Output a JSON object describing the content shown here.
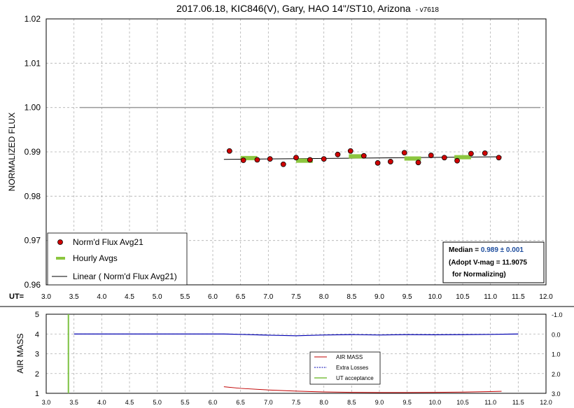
{
  "chart_data": [
    {
      "type": "scatter",
      "title": "2017.06.18, KIC846(V), Gary, HAO 14\"/ST10, Arizona",
      "title_suffix": "- v7618",
      "ylabel": "NORMALIZED FLUX",
      "xlabel": "UT=",
      "xlim": [
        3.0,
        12.0
      ],
      "ylim": [
        0.96,
        1.02
      ],
      "x_ticks": [
        "3.0",
        "3.5",
        "4.0",
        "4.5",
        "5.0",
        "5.5",
        "6.0",
        "6.5",
        "7.0",
        "7.5",
        "8.0",
        "8.5",
        "9.0",
        "9.5",
        "10.0",
        "10.5",
        "11.0",
        "11.5",
        "12.0"
      ],
      "y_ticks": [
        "0.96",
        "0.97",
        "0.98",
        "0.99",
        "1.00",
        "1.01",
        "1.02"
      ],
      "grid": true,
      "reference_line": {
        "y": 1.0,
        "x": [
          3.6,
          11.9
        ],
        "color": "#999999"
      },
      "series": [
        {
          "name": "Norm'd Flux Avg21",
          "kind": "points",
          "color": "#d00000",
          "x": [
            6.3,
            6.55,
            6.8,
            7.03,
            7.27,
            7.5,
            7.75,
            8.0,
            8.25,
            8.48,
            8.72,
            8.97,
            9.2,
            9.45,
            9.7,
            9.93,
            10.17,
            10.4,
            10.65,
            10.9,
            11.15
          ],
          "y": [
            0.9902,
            0.9881,
            0.9882,
            0.9884,
            0.9872,
            0.9887,
            0.9882,
            0.9884,
            0.9894,
            0.9902,
            0.9891,
            0.9875,
            0.9878,
            0.9898,
            0.9876,
            0.9892,
            0.9887,
            0.988,
            0.9896,
            0.9897,
            0.9887
          ]
        },
        {
          "name": "Hourly Avgs",
          "kind": "segments",
          "color": "#8cc63f",
          "points": [
            {
              "x0": 6.5,
              "x1": 6.8,
              "y": 0.9886
            },
            {
              "x0": 7.5,
              "x1": 7.8,
              "y": 0.988
            },
            {
              "x0": 8.45,
              "x1": 8.75,
              "y": 0.989
            },
            {
              "x0": 9.45,
              "x1": 9.75,
              "y": 0.9885
            },
            {
              "x0": 10.35,
              "x1": 10.65,
              "y": 0.9888
            }
          ]
        },
        {
          "name": "Linear ( Norm'd Flux Avg21)",
          "kind": "line",
          "color": "#000000",
          "x": [
            6.2,
            11.2
          ],
          "y": [
            0.9883,
            0.9889
          ]
        }
      ],
      "legend": {
        "placement": "bottom-left"
      },
      "annotation": {
        "line1_label": "Median = ",
        "line1_value": "0.989 ± 0.001",
        "line2": "(Adopt V-mag = 11.9075",
        "line3": "for Normalizing)"
      }
    },
    {
      "type": "line",
      "ylabel": "AIR MASS",
      "xlim": [
        3.0,
        12.0
      ],
      "ylim": [
        1,
        5
      ],
      "y2lim": [
        3.0,
        -1.0
      ],
      "x_ticks": [
        "3.0",
        "3.5",
        "4.0",
        "4.5",
        "5.0",
        "5.5",
        "6.0",
        "6.5",
        "7.0",
        "7.5",
        "8.0",
        "8.5",
        "9.0",
        "9.5",
        "10.0",
        "10.5",
        "11.0",
        "11.5",
        "12.0"
      ],
      "y_ticks": [
        "1",
        "2",
        "3",
        "4",
        "5"
      ],
      "y2_ticks": [
        "-1.0",
        "0.0",
        "1.0",
        "2.0",
        "3.0"
      ],
      "grid": true,
      "series": [
        {
          "name": "AIR MASS",
          "color": "#c00000",
          "x": [
            6.2,
            6.5,
            7.0,
            7.5,
            8.0,
            8.5,
            9.0,
            9.5,
            10.0,
            10.5,
            11.0,
            11.2
          ],
          "y": [
            1.33,
            1.25,
            1.17,
            1.11,
            1.07,
            1.05,
            1.04,
            1.04,
            1.05,
            1.06,
            1.09,
            1.1
          ]
        },
        {
          "name": "Extra Losses",
          "color": "#0000b0",
          "axis": "right",
          "x": [
            3.5,
            6.2,
            6.5,
            7.0,
            7.5,
            8.0,
            8.5,
            9.0,
            9.5,
            10.0,
            10.5,
            11.0,
            11.5
          ],
          "y": [
            0.0,
            0.0,
            0.02,
            0.06,
            0.09,
            0.05,
            0.03,
            0.05,
            0.03,
            0.04,
            0.03,
            0.02,
            0.0
          ]
        },
        {
          "name": "UT acceptance",
          "color": "#7cc142",
          "x": [
            3.4,
            3.4
          ],
          "y": [
            1,
            5
          ]
        }
      ],
      "legend": {
        "placement": "bottom-center"
      }
    }
  ]
}
